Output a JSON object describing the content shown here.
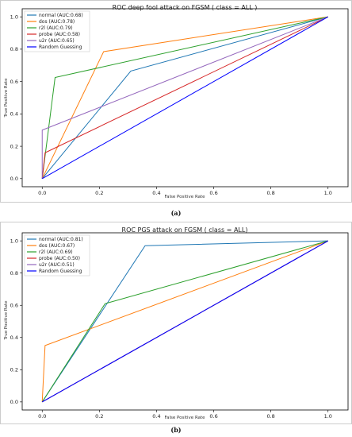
{
  "charts": [
    {
      "caption": "(a)"
    },
    {
      "caption": "(b)"
    }
  ],
  "chart_data": [
    {
      "type": "line",
      "title": "ROC deep fool attack on FGSM ( class = ALL )",
      "xlabel": "False Positive Rate",
      "ylabel": "True Positive Rate",
      "xlim": [
        -0.07,
        1.07
      ],
      "ylim": [
        -0.05,
        1.05
      ],
      "xticks": [
        "0.0",
        "0.2",
        "0.4",
        "0.6",
        "0.8",
        "1.0"
      ],
      "yticks": [
        "0.0",
        "0.2",
        "0.4",
        "0.6",
        "0.8",
        "1.0"
      ],
      "legend_position": "upper-left",
      "series": [
        {
          "name": "normal (AUC:0.68)",
          "color": "#1f77b4",
          "x": [
            0.0,
            0.31,
            1.0
          ],
          "y": [
            0.0,
            0.665,
            1.0
          ]
        },
        {
          "name": "dos (AUC:0.78)",
          "color": "#ff7f0e",
          "x": [
            0.0,
            0.215,
            1.0
          ],
          "y": [
            0.0,
            0.785,
            1.0
          ]
        },
        {
          "name": "r2l (AUC:0.79)",
          "color": "#2ca02c",
          "x": [
            0.0,
            0.045,
            1.0
          ],
          "y": [
            0.0,
            0.625,
            1.0
          ]
        },
        {
          "name": "probe (AUC:0.58)",
          "color": "#d62728",
          "x": [
            0.0,
            0.01,
            1.0
          ],
          "y": [
            0.0,
            0.16,
            1.0
          ]
        },
        {
          "name": "u2r (AUC:0.65)",
          "color": "#9467bd",
          "x": [
            0.0,
            0.0,
            1.0
          ],
          "y": [
            0.0,
            0.3,
            1.0
          ]
        },
        {
          "name": "Random Guessing",
          "color": "#0000ff",
          "x": [
            0.0,
            1.0
          ],
          "y": [
            0.0,
            1.0
          ]
        }
      ]
    },
    {
      "type": "line",
      "title": "ROC PGS attack on FGSM ( class = ALL)",
      "xlabel": "False Positive Rate",
      "ylabel": "True Positive Rate",
      "xlim": [
        -0.07,
        1.07
      ],
      "ylim": [
        -0.05,
        1.05
      ],
      "xticks": [
        "0.0",
        "0.2",
        "0.4",
        "0.6",
        "0.8",
        "1.0"
      ],
      "yticks": [
        "0.0",
        "0.2",
        "0.4",
        "0.6",
        "0.8",
        "1.0"
      ],
      "legend_position": "upper-left",
      "series": [
        {
          "name": "normal (AUC:0.81)",
          "color": "#1f77b4",
          "x": [
            0.0,
            0.36,
            1.0
          ],
          "y": [
            0.0,
            0.97,
            1.0
          ]
        },
        {
          "name": "dos (AUC:0.67)",
          "color": "#ff7f0e",
          "x": [
            0.0,
            0.01,
            1.0
          ],
          "y": [
            0.0,
            0.35,
            1.0
          ]
        },
        {
          "name": "r2l (AUC:0.69)",
          "color": "#2ca02c",
          "x": [
            0.0,
            0.22,
            1.0
          ],
          "y": [
            0.0,
            0.61,
            1.0
          ]
        },
        {
          "name": "probe (AUC:0.50)",
          "color": "#d62728",
          "x": [
            0.0,
            1.0
          ],
          "y": [
            0.0,
            1.0
          ]
        },
        {
          "name": "u2r (AUC:0.51)",
          "color": "#9467bd",
          "x": [
            0.0,
            1.0
          ],
          "y": [
            0.0,
            1.0
          ]
        },
        {
          "name": "Random Guessing",
          "color": "#0000ff",
          "x": [
            0.0,
            1.0
          ],
          "y": [
            0.0,
            1.0
          ]
        }
      ]
    }
  ]
}
